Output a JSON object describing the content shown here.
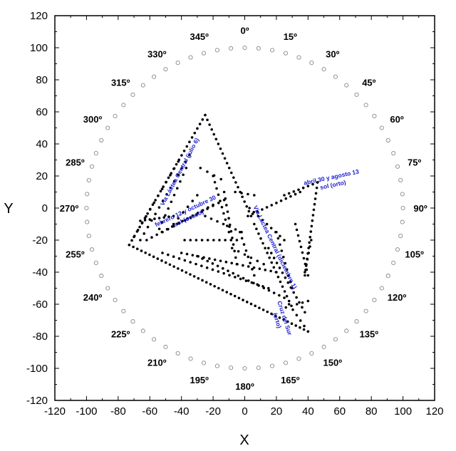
{
  "chart_data": {
    "type": "scatter",
    "xlabel": "X",
    "ylabel": "Y",
    "xlim": [
      -120,
      120
    ],
    "ylim": [
      -120,
      120
    ],
    "x_ticks": [
      "-120",
      "-100",
      "-80",
      "-60",
      "-40",
      "-20",
      "0",
      "20",
      "40",
      "60",
      "80",
      "100",
      "120"
    ],
    "y_ticks": [
      "120",
      "100",
      "80",
      "60",
      "40",
      "20",
      "0",
      "-20",
      "-40",
      "-60",
      "-80",
      "-100",
      "-120"
    ],
    "colors": {
      "points": "#000000",
      "circle_marks": "#888888",
      "annotations": "#1a1ad0"
    },
    "horizon_circle": {
      "radius": 100,
      "step_deg": 5,
      "marker": "open-circle"
    },
    "azimuth_labels": [
      {
        "deg": 0,
        "text": "0º"
      },
      {
        "deg": 15,
        "text": "15º"
      },
      {
        "deg": 30,
        "text": "30º"
      },
      {
        "deg": 45,
        "text": "45º"
      },
      {
        "deg": 60,
        "text": "60º"
      },
      {
        "deg": 75,
        "text": "75º"
      },
      {
        "deg": 90,
        "text": "90º"
      },
      {
        "deg": 105,
        "text": "105º"
      },
      {
        "deg": 120,
        "text": "120º"
      },
      {
        "deg": 135,
        "text": "135º"
      },
      {
        "deg": 150,
        "text": "150º"
      },
      {
        "deg": 165,
        "text": "165º"
      },
      {
        "deg": 180,
        "text": "180º"
      },
      {
        "deg": 195,
        "text": "195º"
      },
      {
        "deg": 210,
        "text": "210º"
      },
      {
        "deg": 225,
        "text": "225º"
      },
      {
        "deg": 240,
        "text": "240º"
      },
      {
        "deg": 255,
        "text": "255º"
      },
      {
        "deg": 270,
        "text": "270º"
      },
      {
        "deg": 285,
        "text": "285º"
      },
      {
        "deg": 300,
        "text": "300º"
      },
      {
        "deg": 315,
        "text": "315º"
      },
      {
        "deg": 330,
        "text": "330º"
      },
      {
        "deg": 345,
        "text": "345º"
      }
    ],
    "annotations": [
      {
        "lines": [
          "abril 30 y agosto 13",
          "sol (orto)"
        ],
        "x": 55,
        "y": 18,
        "angle": -12
      },
      {
        "lines": [
          "Vía Láctea Central (julio 6)"
        ],
        "x": -40,
        "y": 22,
        "angle": -62
      },
      {
        "lines": [
          "febrero 12 y octubre 30",
          "sol (ocaso)"
        ],
        "x": -37,
        "y": -3,
        "angle": -25
      },
      {
        "lines": [
          "Vía Láctea Central (diciembre 1)"
        ],
        "x": 18,
        "y": -25,
        "angle": 64
      },
      {
        "lines": [
          "Cruz del Sur",
          "(orto)"
        ],
        "x": 24,
        "y": -69,
        "angle": 72
      }
    ],
    "segments": [
      {
        "from": [
          -73,
          -23
        ],
        "to": [
          -25,
          58
        ],
        "n": 30
      },
      {
        "from": [
          -25,
          58
        ],
        "to": [
          4,
          -5
        ],
        "n": 22
      },
      {
        "from": [
          -73,
          -23
        ],
        "to": [
          40,
          -77
        ],
        "n": 45
      },
      {
        "from": [
          -66,
          -20
        ],
        "to": [
          -35,
          33
        ],
        "n": 14
      },
      {
        "from": [
          -70,
          -18
        ],
        "to": [
          -42,
          29
        ],
        "n": 12
      },
      {
        "from": [
          -54,
          -13
        ],
        "to": [
          -37,
          25
        ],
        "n": 10
      },
      {
        "from": [
          -66,
          -8
        ],
        "to": [
          -45,
          -5
        ],
        "n": 8
      },
      {
        "from": [
          -62,
          -20
        ],
        "to": [
          -20,
          2
        ],
        "n": 14
      },
      {
        "from": [
          -52,
          -15
        ],
        "to": [
          -13,
          5
        ],
        "n": 12
      },
      {
        "from": [
          -38,
          -20
        ],
        "to": [
          -5,
          -20
        ],
        "n": 10
      },
      {
        "from": [
          -40,
          -28
        ],
        "to": [
          20,
          -40
        ],
        "n": 18
      },
      {
        "from": [
          -52,
          -28
        ],
        "to": [
          15,
          -50
        ],
        "n": 20
      },
      {
        "from": [
          -30,
          -30
        ],
        "to": [
          25,
          -56
        ],
        "n": 18
      },
      {
        "from": [
          2,
          -5
        ],
        "to": [
          35,
          10
        ],
        "n": 12
      },
      {
        "from": [
          25,
          8
        ],
        "to": [
          46,
          16
        ],
        "n": 8
      },
      {
        "from": [
          46,
          16
        ],
        "to": [
          38,
          -42
        ],
        "n": 18
      },
      {
        "from": [
          3,
          0
        ],
        "to": [
          25,
          -20
        ],
        "n": 9
      },
      {
        "from": [
          6,
          -10
        ],
        "to": [
          28,
          -58
        ],
        "n": 17
      },
      {
        "from": [
          15,
          -25
        ],
        "to": [
          38,
          -65
        ],
        "n": 14
      },
      {
        "from": [
          32,
          -10
        ],
        "to": [
          40,
          -42
        ],
        "n": 10
      },
      {
        "from": [
          20,
          -15
        ],
        "to": [
          30,
          -50
        ],
        "n": 10
      },
      {
        "from": [
          42,
          -20
        ],
        "to": [
          38,
          -40
        ],
        "n": 6
      },
      {
        "from": [
          -20,
          20
        ],
        "to": [
          -10,
          -15
        ],
        "n": 10
      },
      {
        "from": [
          -13,
          10
        ],
        "to": [
          -5,
          -35
        ],
        "n": 12
      },
      {
        "from": [
          -3,
          -15
        ],
        "to": [
          6,
          -42
        ],
        "n": 8
      },
      {
        "from": [
          -8,
          -25
        ],
        "to": [
          12,
          -35
        ],
        "n": 6
      },
      {
        "from": [
          -28,
          25
        ],
        "to": [
          -15,
          18
        ],
        "n": 4
      },
      {
        "from": [
          28,
          -60
        ],
        "to": [
          40,
          -77
        ],
        "n": 6
      },
      {
        "from": [
          26,
          -62
        ],
        "to": [
          40,
          -58
        ],
        "n": 5
      },
      {
        "from": [
          -45,
          -10
        ],
        "to": [
          -30,
          8
        ],
        "n": 6
      },
      {
        "from": [
          -25,
          -5
        ],
        "to": [
          -2,
          -15
        ],
        "n": 7
      },
      {
        "from": [
          -6,
          10
        ],
        "to": [
          6,
          8
        ],
        "n": 4
      }
    ]
  }
}
